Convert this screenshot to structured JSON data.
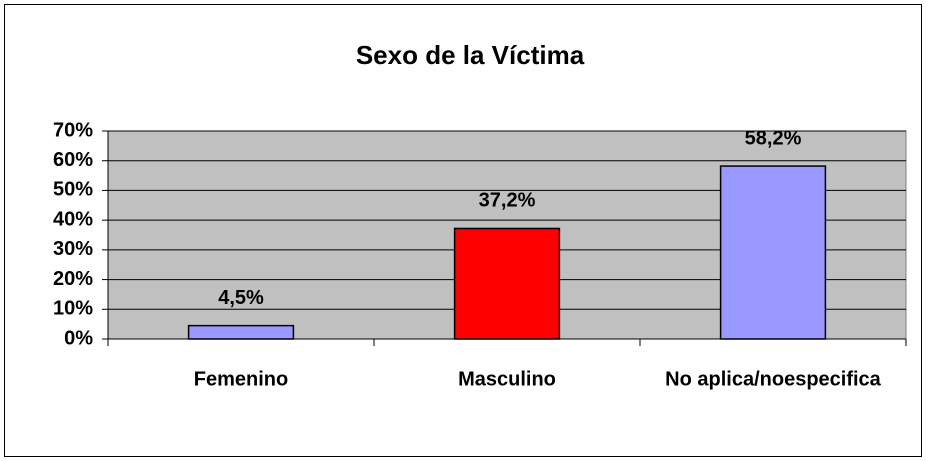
{
  "chart_data": {
    "type": "bar",
    "title": "Sexo de la Víctima",
    "categories": [
      "Femenino",
      "Masculino",
      "No aplica/noespecifica"
    ],
    "values": [
      4.5,
      37.2,
      58.2
    ],
    "value_labels": [
      "4,5%",
      "37,2%",
      "58,2%"
    ],
    "colors": [
      "#9999ff",
      "#ff0000",
      "#9999ff"
    ],
    "ylim": [
      0,
      70
    ],
    "yticks": [
      {
        "value": 0,
        "label": "0%"
      },
      {
        "value": 10,
        "label": "10%"
      },
      {
        "value": 20,
        "label": "20%"
      },
      {
        "value": 30,
        "label": "30%"
      },
      {
        "value": 40,
        "label": "40%"
      },
      {
        "value": 50,
        "label": "50%"
      },
      {
        "value": 60,
        "label": "60%"
      },
      {
        "value": 70,
        "label": "70%"
      }
    ],
    "grid": true
  }
}
